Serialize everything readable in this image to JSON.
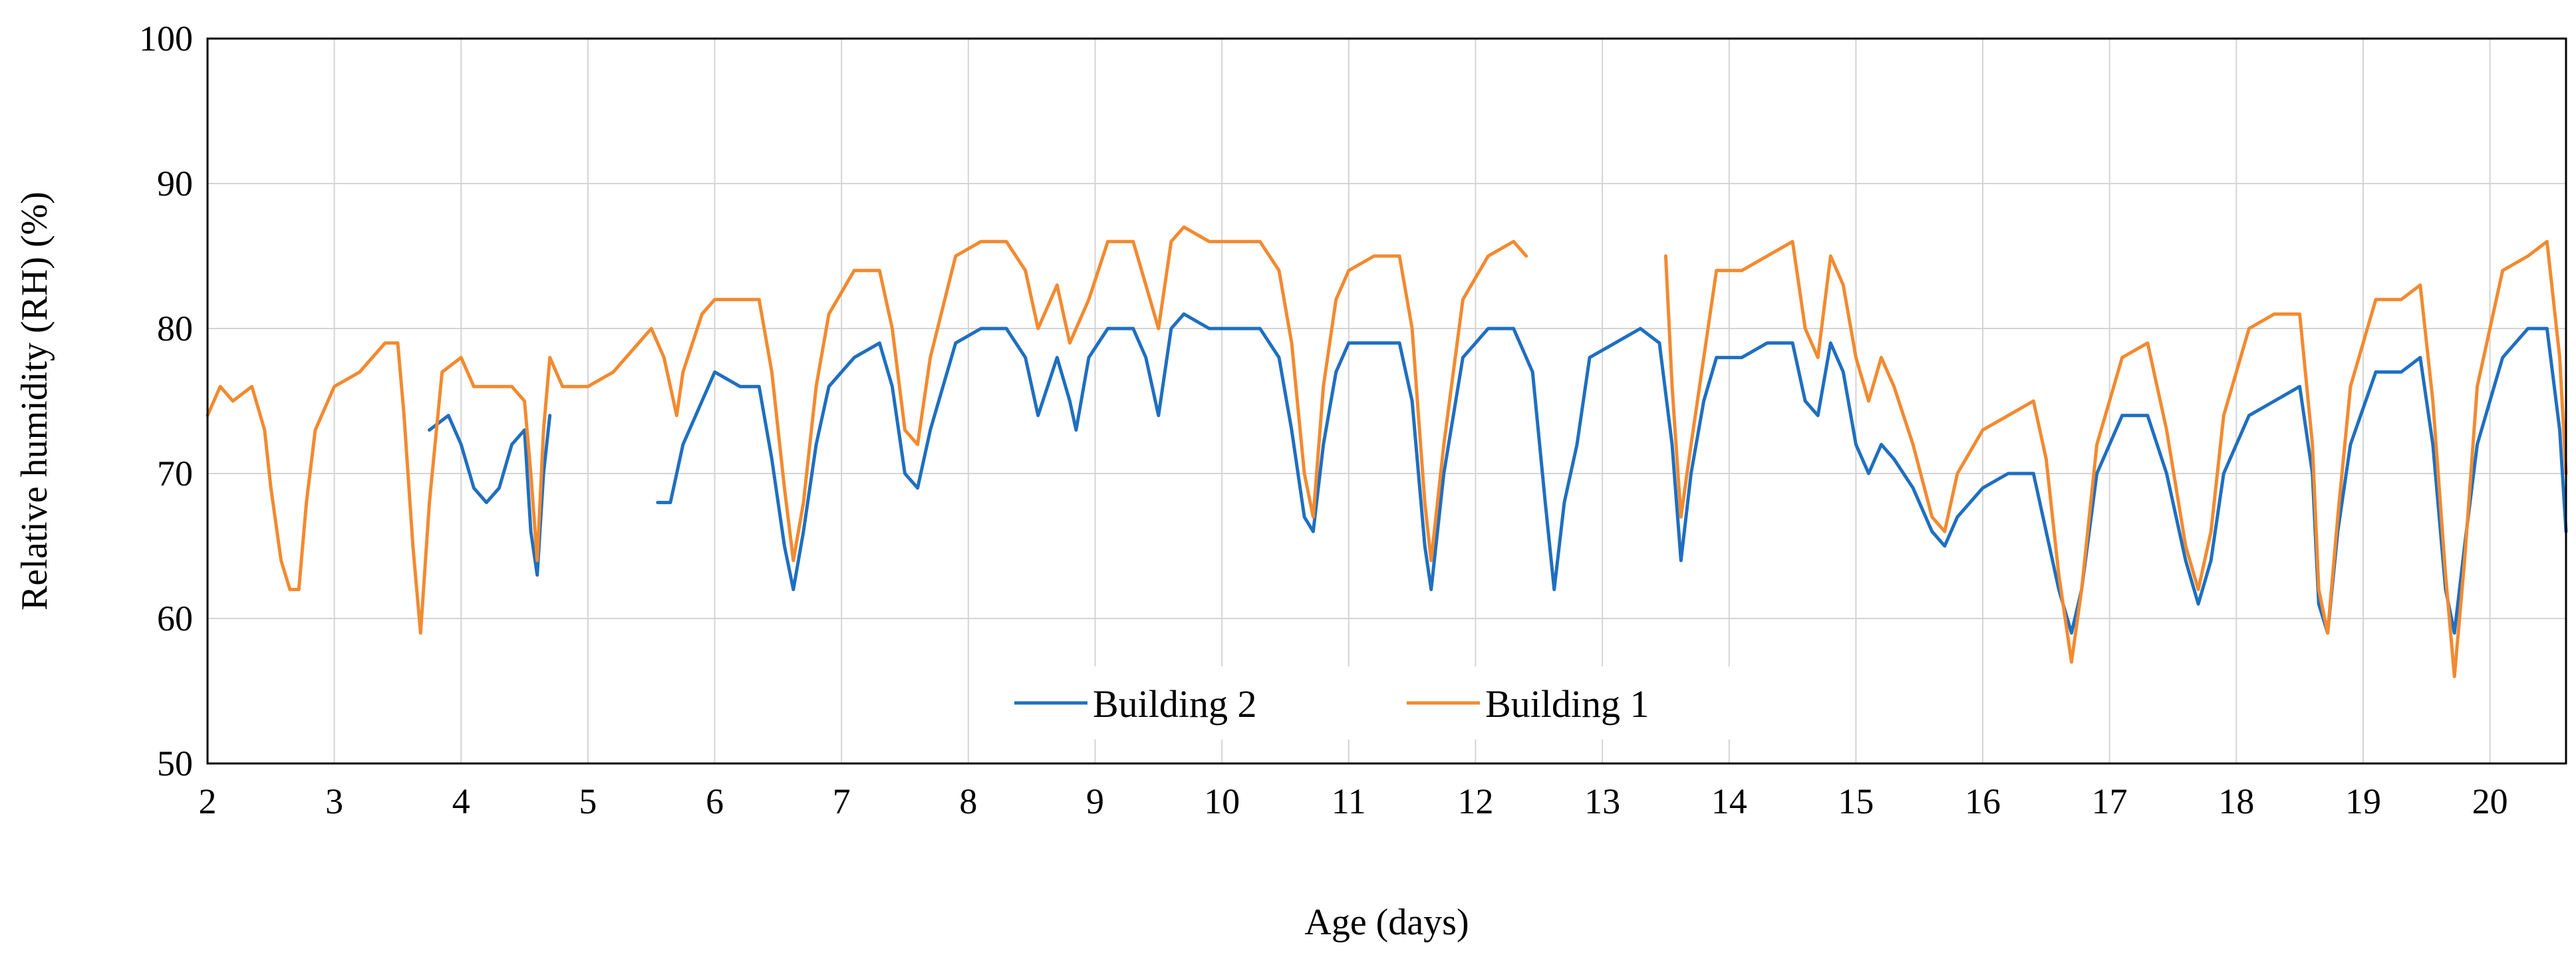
{
  "chart_data": {
    "type": "line",
    "title": "",
    "xlabel": "Age (days)",
    "ylabel": "Relative humidity (RH) (%)",
    "xlim": [
      2,
      20.6
    ],
    "ylim": [
      50,
      100
    ],
    "xticks": [
      2,
      3,
      4,
      5,
      6,
      7,
      8,
      9,
      10,
      11,
      12,
      13,
      14,
      15,
      16,
      17,
      18,
      19,
      20
    ],
    "xtick_labels": [
      "2",
      "3",
      "4",
      "5",
      "6",
      "7",
      "8",
      "9",
      "10",
      "11",
      "12",
      "13",
      "14",
      "15",
      "16",
      "17",
      "18",
      "19",
      "20"
    ],
    "yticks": [
      50,
      60,
      70,
      80,
      90,
      100
    ],
    "ytick_labels": [
      "50",
      "60",
      "70",
      "80",
      "90",
      "100"
    ],
    "grid": true,
    "legend_position": "bottom-center",
    "series": [
      {
        "name": "Building 2",
        "color": "#1f6fc0",
        "segments": [
          [
            [
              3.75,
              73
            ],
            [
              3.9,
              74
            ],
            [
              4.0,
              72
            ],
            [
              4.1,
              69
            ],
            [
              4.2,
              68
            ],
            [
              4.3,
              69
            ],
            [
              4.4,
              72
            ],
            [
              4.5,
              73
            ],
            [
              4.55,
              66
            ],
            [
              4.6,
              63
            ],
            [
              4.65,
              70
            ],
            [
              4.7,
              74
            ]
          ],
          [
            [
              5.55,
              68
            ],
            [
              5.65,
              68
            ],
            [
              5.75,
              72
            ],
            [
              5.9,
              75
            ],
            [
              6.0,
              77
            ],
            [
              6.2,
              76
            ],
            [
              6.35,
              76
            ],
            [
              6.45,
              71
            ],
            [
              6.55,
              65
            ],
            [
              6.62,
              62
            ],
            [
              6.7,
              66
            ],
            [
              6.8,
              72
            ],
            [
              6.9,
              76
            ],
            [
              7.1,
              78
            ],
            [
              7.3,
              79
            ],
            [
              7.4,
              76
            ],
            [
              7.5,
              70
            ],
            [
              7.6,
              69
            ],
            [
              7.7,
              73
            ],
            [
              7.9,
              79
            ],
            [
              8.1,
              80
            ],
            [
              8.3,
              80
            ],
            [
              8.45,
              78
            ],
            [
              8.55,
              74
            ],
            [
              8.7,
              78
            ],
            [
              8.8,
              75
            ],
            [
              8.85,
              73
            ],
            [
              8.95,
              78
            ],
            [
              9.1,
              80
            ],
            [
              9.3,
              80
            ],
            [
              9.4,
              78
            ],
            [
              9.5,
              74
            ],
            [
              9.6,
              80
            ],
            [
              9.7,
              81
            ],
            [
              9.9,
              80
            ],
            [
              10.1,
              80
            ],
            [
              10.3,
              80
            ],
            [
              10.45,
              78
            ],
            [
              10.55,
              73
            ],
            [
              10.65,
              67
            ],
            [
              10.72,
              66
            ],
            [
              10.8,
              72
            ],
            [
              10.9,
              77
            ],
            [
              11.0,
              79
            ],
            [
              11.2,
              79
            ],
            [
              11.4,
              79
            ],
            [
              11.5,
              75
            ],
            [
              11.6,
              65
            ],
            [
              11.65,
              62
            ],
            [
              11.75,
              70
            ],
            [
              11.9,
              78
            ],
            [
              12.1,
              80
            ],
            [
              12.3,
              80
            ],
            [
              12.45,
              77
            ],
            [
              12.55,
              68
            ],
            [
              12.62,
              62
            ],
            [
              12.7,
              68
            ],
            [
              12.8,
              72
            ],
            [
              12.9,
              78
            ],
            [
              13.1,
              79
            ],
            [
              13.3,
              80
            ],
            [
              13.45,
              79
            ],
            [
              13.55,
              72
            ],
            [
              13.62,
              64
            ],
            [
              13.7,
              70
            ],
            [
              13.8,
              75
            ],
            [
              13.9,
              78
            ],
            [
              14.1,
              78
            ],
            [
              14.3,
              79
            ],
            [
              14.5,
              79
            ],
            [
              14.6,
              75
            ],
            [
              14.7,
              74
            ],
            [
              14.8,
              79
            ],
            [
              14.9,
              77
            ],
            [
              15.0,
              72
            ],
            [
              15.1,
              70
            ],
            [
              15.2,
              72
            ],
            [
              15.3,
              71
            ],
            [
              15.45,
              69
            ],
            [
              15.6,
              66
            ],
            [
              15.7,
              65
            ],
            [
              15.8,
              67
            ],
            [
              16.0,
              69
            ],
            [
              16.2,
              70
            ],
            [
              16.4,
              70
            ],
            [
              16.5,
              66
            ],
            [
              16.6,
              62
            ],
            [
              16.7,
              59
            ],
            [
              16.78,
              62
            ],
            [
              16.9,
              70
            ],
            [
              17.1,
              74
            ],
            [
              17.3,
              74
            ],
            [
              17.45,
              70
            ],
            [
              17.6,
              64
            ],
            [
              17.7,
              61
            ],
            [
              17.8,
              64
            ],
            [
              17.9,
              70
            ],
            [
              18.1,
              74
            ],
            [
              18.3,
              75
            ],
            [
              18.5,
              76
            ],
            [
              18.6,
              70
            ],
            [
              18.65,
              61
            ],
            [
              18.72,
              59
            ],
            [
              18.8,
              66
            ],
            [
              18.9,
              72
            ],
            [
              19.1,
              77
            ],
            [
              19.3,
              77
            ],
            [
              19.45,
              78
            ],
            [
              19.55,
              72
            ],
            [
              19.65,
              62
            ],
            [
              19.72,
              59
            ],
            [
              19.8,
              65
            ],
            [
              19.9,
              72
            ],
            [
              20.1,
              78
            ],
            [
              20.3,
              80
            ],
            [
              20.45,
              80
            ],
            [
              20.55,
              73
            ],
            [
              20.6,
              66
            ]
          ]
        ]
      },
      {
        "name": "Building 1",
        "color": "#f28a30",
        "segments": [
          [
            [
              2.0,
              74
            ],
            [
              2.1,
              76
            ],
            [
              2.2,
              75
            ],
            [
              2.35,
              76
            ],
            [
              2.45,
              73
            ],
            [
              2.5,
              69
            ],
            [
              2.58,
              64
            ],
            [
              2.65,
              62
            ],
            [
              2.72,
              62
            ],
            [
              2.78,
              68
            ],
            [
              2.85,
              73
            ],
            [
              3.0,
              76
            ],
            [
              3.2,
              77
            ],
            [
              3.4,
              79
            ],
            [
              3.5,
              79
            ],
            [
              3.55,
              74
            ],
            [
              3.62,
              65
            ],
            [
              3.68,
              59
            ],
            [
              3.75,
              68
            ],
            [
              3.85,
              77
            ],
            [
              4.0,
              78
            ],
            [
              4.1,
              76
            ],
            [
              4.3,
              76
            ],
            [
              4.4,
              76
            ],
            [
              4.5,
              75
            ],
            [
              4.55,
              70
            ],
            [
              4.6,
              64
            ],
            [
              4.65,
              73
            ],
            [
              4.7,
              78
            ],
            [
              4.8,
              76
            ],
            [
              5.0,
              76
            ],
            [
              5.2,
              77
            ],
            [
              5.4,
              79
            ],
            [
              5.5,
              80
            ],
            [
              5.6,
              78
            ],
            [
              5.7,
              74
            ],
            [
              5.75,
              77
            ],
            [
              5.9,
              81
            ],
            [
              6.0,
              82
            ],
            [
              6.2,
              82
            ],
            [
              6.35,
              82
            ],
            [
              6.45,
              77
            ],
            [
              6.55,
              69
            ],
            [
              6.62,
              64
            ],
            [
              6.7,
              68
            ],
            [
              6.8,
              76
            ],
            [
              6.9,
              81
            ],
            [
              7.1,
              84
            ],
            [
              7.3,
              84
            ],
            [
              7.4,
              80
            ],
            [
              7.5,
              73
            ],
            [
              7.6,
              72
            ],
            [
              7.7,
              78
            ],
            [
              7.9,
              85
            ],
            [
              8.1,
              86
            ],
            [
              8.3,
              86
            ],
            [
              8.45,
              84
            ],
            [
              8.55,
              80
            ],
            [
              8.7,
              83
            ],
            [
              8.8,
              79
            ],
            [
              8.95,
              82
            ],
            [
              9.1,
              86
            ],
            [
              9.3,
              86
            ],
            [
              9.4,
              83
            ],
            [
              9.5,
              80
            ],
            [
              9.6,
              86
            ],
            [
              9.7,
              87
            ],
            [
              9.9,
              86
            ],
            [
              10.1,
              86
            ],
            [
              10.3,
              86
            ],
            [
              10.45,
              84
            ],
            [
              10.55,
              79
            ],
            [
              10.65,
              70
            ],
            [
              10.72,
              67
            ],
            [
              10.8,
              76
            ],
            [
              10.9,
              82
            ],
            [
              11.0,
              84
            ],
            [
              11.2,
              85
            ],
            [
              11.4,
              85
            ],
            [
              11.5,
              80
            ],
            [
              11.6,
              68
            ],
            [
              11.65,
              64
            ],
            [
              11.75,
              72
            ],
            [
              11.9,
              82
            ],
            [
              12.1,
              85
            ],
            [
              12.3,
              86
            ],
            [
              12.4,
              85
            ]
          ],
          [
            [
              13.5,
              85
            ],
            [
              13.55,
              76
            ],
            [
              13.62,
              67
            ],
            [
              13.7,
              72
            ],
            [
              13.8,
              78
            ],
            [
              13.9,
              84
            ],
            [
              14.1,
              84
            ],
            [
              14.3,
              85
            ],
            [
              14.5,
              86
            ],
            [
              14.6,
              80
            ],
            [
              14.7,
              78
            ],
            [
              14.8,
              85
            ],
            [
              14.9,
              83
            ],
            [
              15.0,
              78
            ],
            [
              15.1,
              75
            ],
            [
              15.2,
              78
            ],
            [
              15.3,
              76
            ],
            [
              15.45,
              72
            ],
            [
              15.6,
              67
            ],
            [
              15.7,
              66
            ],
            [
              15.8,
              70
            ],
            [
              16.0,
              73
            ],
            [
              16.2,
              74
            ],
            [
              16.4,
              75
            ],
            [
              16.5,
              71
            ],
            [
              16.6,
              63
            ],
            [
              16.7,
              57
            ],
            [
              16.78,
              62
            ],
            [
              16.9,
              72
            ],
            [
              17.1,
              78
            ],
            [
              17.3,
              79
            ],
            [
              17.45,
              73
            ],
            [
              17.6,
              65
            ],
            [
              17.7,
              62
            ],
            [
              17.8,
              66
            ],
            [
              17.9,
              74
            ],
            [
              18.1,
              80
            ],
            [
              18.3,
              81
            ],
            [
              18.5,
              81
            ],
            [
              18.6,
              72
            ],
            [
              18.65,
              62
            ],
            [
              18.72,
              59
            ],
            [
              18.8,
              67
            ],
            [
              18.9,
              76
            ],
            [
              19.1,
              82
            ],
            [
              19.3,
              82
            ],
            [
              19.45,
              83
            ],
            [
              19.55,
              75
            ],
            [
              19.65,
              63
            ],
            [
              19.72,
              56
            ],
            [
              19.8,
              64
            ],
            [
              19.9,
              76
            ],
            [
              20.1,
              84
            ],
            [
              20.3,
              85
            ],
            [
              20.45,
              86
            ],
            [
              20.55,
              78
            ],
            [
              20.6,
              70
            ]
          ]
        ]
      }
    ]
  }
}
